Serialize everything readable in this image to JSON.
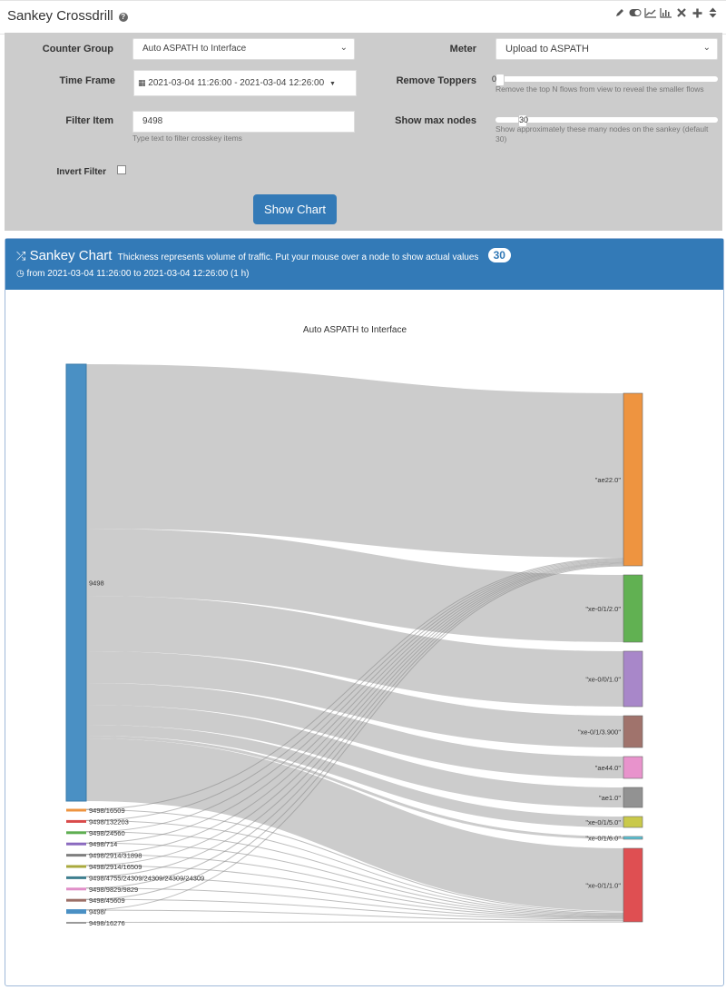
{
  "header": {
    "title": "Sankey Crossdrill",
    "help_icon": "question-circle-icon",
    "tools": [
      "pencil-icon",
      "toggle-icon",
      "line-chart-icon",
      "bar-chart-icon",
      "close-icon",
      "plus-icon",
      "sort-icon"
    ]
  },
  "form": {
    "counter_group": {
      "label": "Counter Group",
      "value": "Auto ASPATH to Interface"
    },
    "meter": {
      "label": "Meter",
      "value": "Upload to ASPATH"
    },
    "time_frame": {
      "label": "Time Frame",
      "value": "2021-03-04 11:26:00 - 2021-03-04 12:26:00"
    },
    "remove_toppers": {
      "label": "Remove Toppers",
      "value": "0",
      "hint": "Remove the top N flows from view to reveal the smaller flows"
    },
    "filter_item": {
      "label": "Filter Item",
      "value": "9498",
      "hint": "Type text to filter crosskey items"
    },
    "show_max_nodes": {
      "label": "Show max nodes",
      "value": "30",
      "hint": "Show approximately these many nodes on the sankey (default 30)"
    },
    "invert_filter": {
      "label": "Invert Filter",
      "checked": false
    },
    "show_chart_button": "Show Chart"
  },
  "chart_panel": {
    "title": "Sankey Chart",
    "subtitle": "Thickness represents volume of traffic. Put your mouse over a node to show actual values",
    "badge": "30",
    "range_text": "from 2021-03-04 11:26:00 to 2021-03-04 12:26:00 (1 h)"
  },
  "chart_data": {
    "type": "sankey",
    "title": "Auto ASPATH to Interface",
    "link_color": "#cccccc",
    "sources": [
      {
        "name": "9498",
        "color": "#4a90c4"
      },
      {
        "name": "9498/16509",
        "color": "#ee9440"
      },
      {
        "name": "9498/132203",
        "color": "#d94a4a"
      },
      {
        "name": "9498/24560",
        "color": "#5fae52"
      },
      {
        "name": "9498/714",
        "color": "#8a6abf"
      },
      {
        "name": "9498/2914/31898",
        "color": "#7f7f7f"
      },
      {
        "name": "9498/2914/16509",
        "color": "#a9a93d"
      },
      {
        "name": "9498/4755/24309/24309/24309/24309",
        "color": "#3f7f8f"
      },
      {
        "name": "9498/9829/9829",
        "color": "#e08fc8"
      },
      {
        "name": "9498/45609",
        "color": "#9c7068"
      },
      {
        "name": "9498/",
        "color": "#4a90c4"
      },
      {
        "name": "9498/16276",
        "color": "#999999"
      }
    ],
    "targets": [
      {
        "name": "\"ae22.0\"",
        "color": "#ee9440"
      },
      {
        "name": "\"xe-0/1/2.0\"",
        "color": "#61b152"
      },
      {
        "name": "\"xe-0/0/1.0\"",
        "color": "#a887c9"
      },
      {
        "name": "\"xe-0/1/3.900\"",
        "color": "#a0736c"
      },
      {
        "name": "\"ae44.0\"",
        "color": "#e893cc"
      },
      {
        "name": "\"ae1.0\"",
        "color": "#929292"
      },
      {
        "name": "\"xe-0/1/5.0\"",
        "color": "#c9c94a"
      },
      {
        "name": "\"xe-0/1/6.0\"",
        "color": "#5bc3d6"
      },
      {
        "name": "\"xe-0/1/1.0\"",
        "color": "#df4f52"
      }
    ],
    "links": [
      {
        "source": "9498",
        "target": "\"ae22.0\"",
        "value": 181
      },
      {
        "source": "9498",
        "target": "\"xe-0/1/2.0\"",
        "value": 74
      },
      {
        "source": "9498",
        "target": "\"xe-0/0/1.0\"",
        "value": 61
      },
      {
        "source": "9498",
        "target": "\"xe-0/1/3.900\"",
        "value": 35
      },
      {
        "source": "9498",
        "target": "\"ae44.0\"",
        "value": 24
      },
      {
        "source": "9498",
        "target": "\"ae1.0\"",
        "value": 22
      },
      {
        "source": "9498",
        "target": "\"xe-0/1/5.0\"",
        "value": 12
      },
      {
        "source": "9498",
        "target": "\"xe-0/1/6.0\"",
        "value": 3
      },
      {
        "source": "9498",
        "target": "\"xe-0/1/1.0\"",
        "value": 69
      },
      {
        "source": "9498/16509",
        "target": "\"ae22.0\"",
        "value": 1
      },
      {
        "source": "9498/16509",
        "target": "\"xe-0/1/1.0\"",
        "value": 2
      },
      {
        "source": "9498/132203",
        "target": "\"ae22.0\"",
        "value": 1
      },
      {
        "source": "9498/132203",
        "target": "\"xe-0/1/1.0\"",
        "value": 1
      },
      {
        "source": "9498/24560",
        "target": "\"ae22.0\"",
        "value": 1
      },
      {
        "source": "9498/24560",
        "target": "\"xe-0/1/1.0\"",
        "value": 1
      },
      {
        "source": "9498/714",
        "target": "\"ae22.0\"",
        "value": 1
      },
      {
        "source": "9498/714",
        "target": "\"xe-0/1/1.0\"",
        "value": 1
      },
      {
        "source": "9498/2914/31898",
        "target": "\"ae22.0\"",
        "value": 1
      },
      {
        "source": "9498/2914/31898",
        "target": "\"xe-0/1/1.0\"",
        "value": 1
      },
      {
        "source": "9498/2914/16509",
        "target": "\"ae22.0\"",
        "value": 0.5
      },
      {
        "source": "9498/2914/16509",
        "target": "\"xe-0/1/1.0\"",
        "value": 0.5
      },
      {
        "source": "9498/4755/24309/24309/24309/24309",
        "target": "\"ae22.0\"",
        "value": 0.5
      },
      {
        "source": "9498/4755/24309/24309/24309/24309",
        "target": "\"xe-0/1/1.0\"",
        "value": 0.5
      },
      {
        "source": "9498/9829/9829",
        "target": "\"ae22.0\"",
        "value": 1
      },
      {
        "source": "9498/9829/9829",
        "target": "\"xe-0/1/1.0\"",
        "value": 1
      },
      {
        "source": "9498/45609",
        "target": "\"ae22.0\"",
        "value": 1
      },
      {
        "source": "9498/45609",
        "target": "\"xe-0/1/1.0\"",
        "value": 1
      },
      {
        "source": "9498/",
        "target": "\"ae22.0\"",
        "value": 1
      },
      {
        "source": "9498/",
        "target": "\"xe-0/1/1.0\"",
        "value": 2
      },
      {
        "source": "9498/16276",
        "target": "\"xe-0/1/1.0\"",
        "value": 1
      }
    ]
  }
}
